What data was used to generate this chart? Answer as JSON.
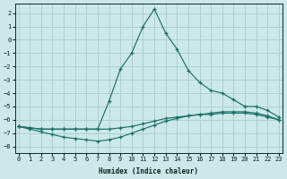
{
  "xlabel": "Humidex (Indice chaleur)",
  "xlim": [
    -0.3,
    23.3
  ],
  "ylim": [
    -8.5,
    2.7
  ],
  "xticks": [
    0,
    1,
    2,
    3,
    4,
    5,
    6,
    7,
    8,
    9,
    10,
    11,
    12,
    13,
    14,
    15,
    16,
    17,
    18,
    19,
    20,
    21,
    22,
    23
  ],
  "yticks": [
    2,
    1,
    0,
    -1,
    -2,
    -3,
    -4,
    -5,
    -6,
    -7,
    -8
  ],
  "background_color": "#cce8e8",
  "grid_color": "#aad0d0",
  "line_color": "#1a7068",
  "line1_x": [
    0,
    1,
    2,
    3,
    4,
    5,
    6,
    7,
    8,
    9,
    10,
    11,
    12,
    13,
    14,
    15,
    16,
    17,
    18,
    19,
    20,
    21,
    22,
    23
  ],
  "line1_y": [
    -6.5,
    -6.6,
    -6.7,
    -6.7,
    -6.7,
    -6.7,
    -6.7,
    -6.7,
    -6.7,
    -6.6,
    -6.5,
    -6.3,
    -6.1,
    -5.9,
    -5.8,
    -5.7,
    -5.6,
    -5.6,
    -5.5,
    -5.5,
    -5.5,
    -5.6,
    -5.8,
    -6.0
  ],
  "line2_x": [
    0,
    1,
    2,
    3,
    4,
    5,
    6,
    7,
    8,
    9,
    10,
    11,
    12,
    13,
    14,
    15,
    16,
    17,
    18,
    19,
    20,
    21,
    22,
    23
  ],
  "line2_y": [
    -6.5,
    -6.7,
    -6.9,
    -7.1,
    -7.3,
    -7.4,
    -7.5,
    -7.6,
    -7.5,
    -7.3,
    -7.0,
    -6.7,
    -6.4,
    -6.1,
    -5.9,
    -5.7,
    -5.6,
    -5.5,
    -5.4,
    -5.4,
    -5.4,
    -5.5,
    -5.7,
    -6.0
  ],
  "line3_x": [
    0,
    1,
    2,
    3,
    4,
    5,
    6,
    7,
    8,
    9,
    10,
    11,
    12,
    13,
    14,
    15,
    16,
    17,
    18,
    19,
    20,
    21,
    22,
    23
  ],
  "line3_y": [
    -6.5,
    -6.6,
    -6.7,
    -6.7,
    -6.7,
    -6.7,
    -6.7,
    -6.7,
    -4.6,
    -2.2,
    -1.0,
    1.0,
    2.3,
    0.5,
    -0.7,
    -2.3,
    -3.2,
    -3.8,
    -4.0,
    -4.5,
    -5.0,
    -5.0,
    -5.3,
    -5.8
  ]
}
